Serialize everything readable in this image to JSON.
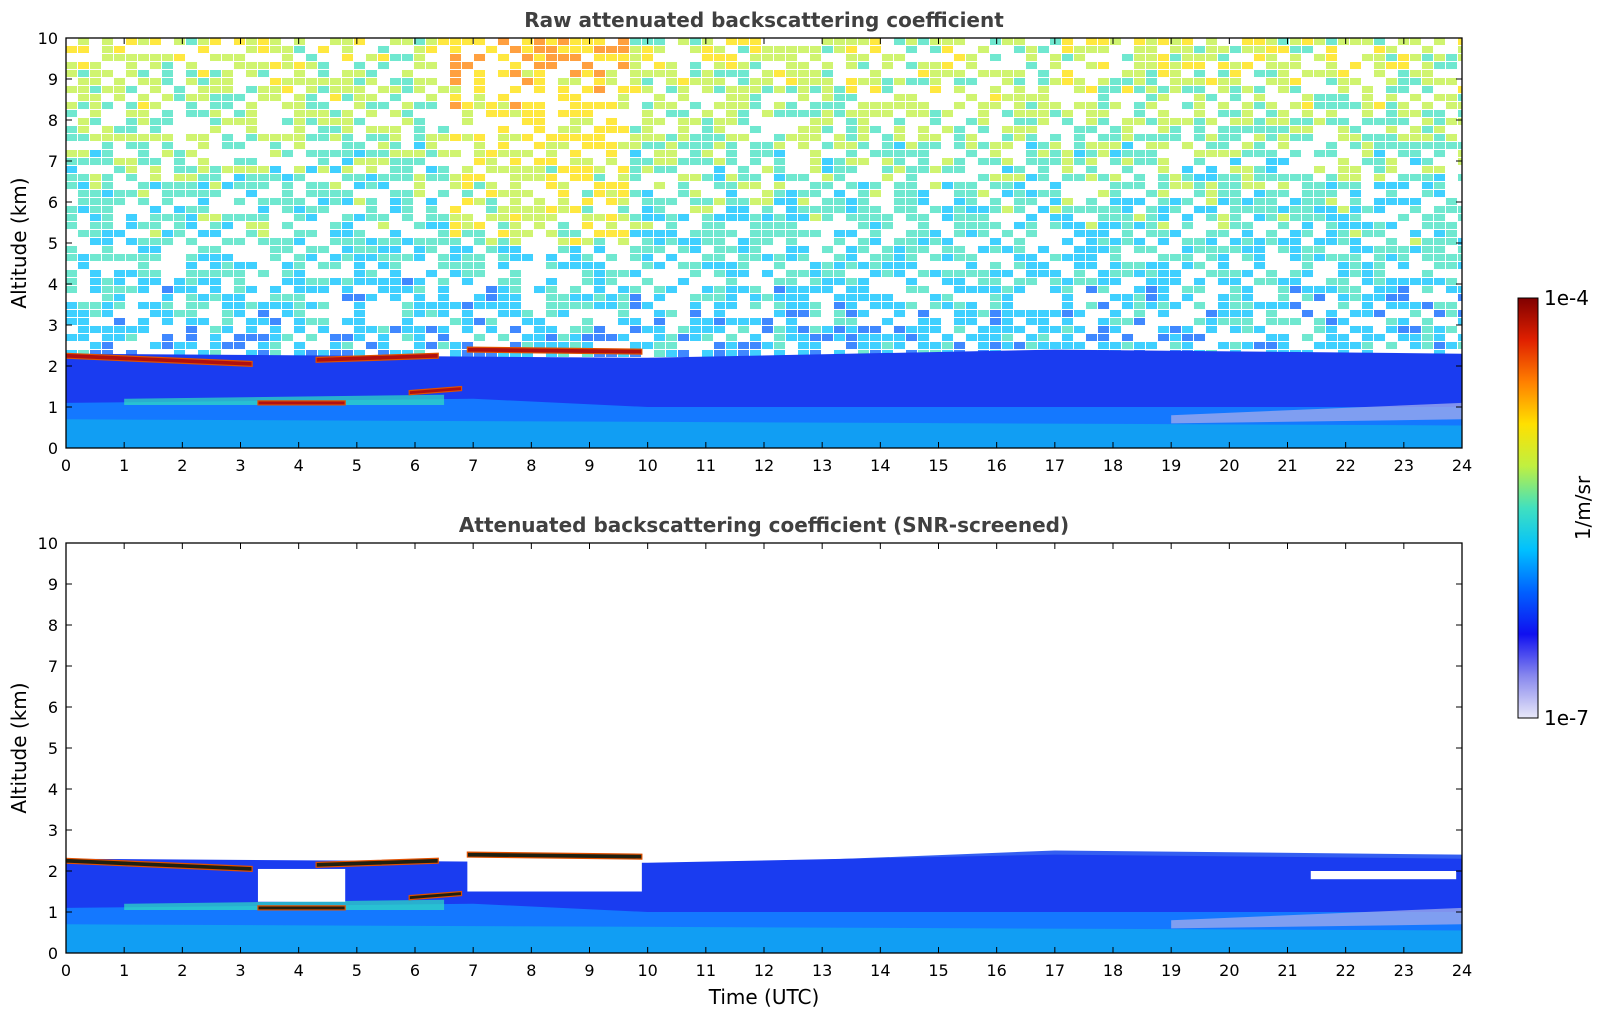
{
  "chart_data": [
    {
      "type": "heatmap",
      "title": "Raw attenuated backscattering coefficient",
      "xlabel": "",
      "ylabel": "Altitude (km)",
      "xlim": [
        0,
        24
      ],
      "ylim": [
        0,
        10
      ],
      "xticks": [
        0,
        1,
        2,
        3,
        4,
        5,
        6,
        7,
        8,
        9,
        10,
        11,
        12,
        13,
        14,
        15,
        16,
        17,
        18,
        19,
        20,
        21,
        22,
        23,
        24
      ],
      "yticks": [
        0,
        1,
        2,
        3,
        4,
        5,
        6,
        7,
        8,
        9,
        10
      ],
      "screened": false,
      "features": [
        {
          "name": "cloud layer",
          "x": [
            0,
            3.2
          ],
          "alt": [
            2.25,
            2.05
          ]
        },
        {
          "name": "cloud layer",
          "x": [
            4.3,
            6.4
          ],
          "alt": [
            2.15,
            2.25
          ]
        },
        {
          "name": "cloud layer",
          "x": [
            6.9,
            9.9
          ],
          "alt": [
            2.4,
            2.35
          ]
        },
        {
          "name": "low cloud",
          "x": [
            3.3,
            4.8
          ],
          "alt": [
            1.1,
            1.1
          ]
        },
        {
          "name": "low cloud",
          "x": [
            5.9,
            6.8
          ],
          "alt": [
            1.35,
            1.45
          ]
        },
        {
          "name": "boundary layer",
          "x": [
            0,
            24
          ],
          "alt": [
            0,
            1.2
          ]
        }
      ]
    },
    {
      "type": "heatmap",
      "title": "Attenuated backscattering coefficient (SNR-screened)",
      "xlabel": "Time (UTC)",
      "ylabel": "Altitude (km)",
      "xlim": [
        0,
        24
      ],
      "ylim": [
        0,
        10
      ],
      "xticks": [
        0,
        1,
        2,
        3,
        4,
        5,
        6,
        7,
        8,
        9,
        10,
        11,
        12,
        13,
        14,
        15,
        16,
        17,
        18,
        19,
        20,
        21,
        22,
        23,
        24
      ],
      "yticks": [
        0,
        1,
        2,
        3,
        4,
        5,
        6,
        7,
        8,
        9,
        10
      ],
      "screened": true,
      "features": [
        {
          "name": "cloud layer",
          "x": [
            0,
            3.2
          ],
          "alt": [
            2.25,
            2.05
          ]
        },
        {
          "name": "cloud layer",
          "x": [
            4.3,
            6.4
          ],
          "alt": [
            2.15,
            2.25
          ]
        },
        {
          "name": "cloud layer",
          "x": [
            6.9,
            9.9
          ],
          "alt": [
            2.4,
            2.35
          ]
        },
        {
          "name": "low cloud",
          "x": [
            3.3,
            4.8
          ],
          "alt": [
            1.1,
            1.1
          ]
        },
        {
          "name": "low cloud",
          "x": [
            5.9,
            6.8
          ],
          "alt": [
            1.35,
            1.45
          ]
        },
        {
          "name": "boundary layer",
          "x": [
            0,
            24
          ],
          "alt": [
            0,
            1.2
          ]
        }
      ]
    }
  ],
  "colorbar": {
    "max_label": "1e-4",
    "min_label": "1e-7",
    "unit": "1/m/sr",
    "colors": [
      "#e8e8f8",
      "#8888ee",
      "#1010f0",
      "#0060ff",
      "#00c0ff",
      "#40e0c0",
      "#c0f040",
      "#ffe000",
      "#ff8000",
      "#e02000",
      "#800000"
    ]
  }
}
